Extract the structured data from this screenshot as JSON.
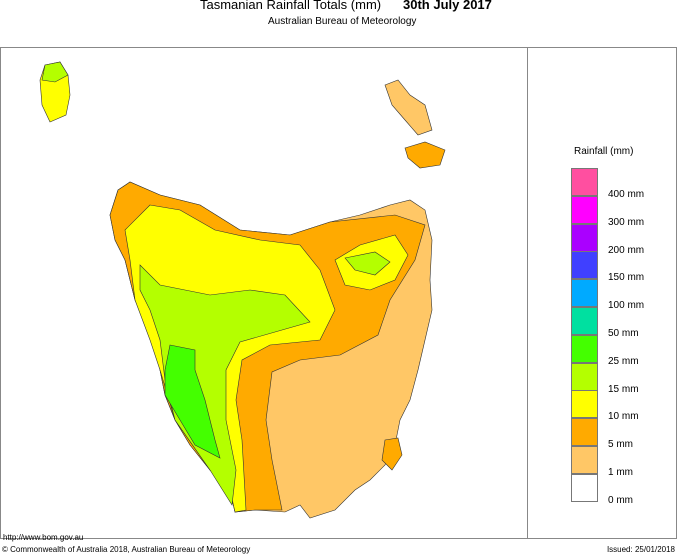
{
  "header": {
    "title": "Tasmanian Rainfall Totals (mm)",
    "date": "30th July 2017",
    "subtitle": "Australian Bureau of Meteorology"
  },
  "legend": {
    "title": "Rainfall (mm)",
    "colors": [
      "#FF4FA0",
      "#FF00FF",
      "#AA00FF",
      "#4040FF",
      "#00AAFF",
      "#00E0A0",
      "#44FF00",
      "#B4FF00",
      "#FFFF00",
      "#FFAA00",
      "#FFC766",
      "#FFFFFF"
    ],
    "labels": [
      "400 mm",
      "300 mm",
      "200 mm",
      "150 mm",
      "100 mm",
      "50 mm",
      "25 mm",
      "15 mm",
      "10 mm",
      "5 mm",
      "1 mm",
      "0 mm"
    ]
  },
  "footer": {
    "url": "http://www.bom.gov.au",
    "copyright": "© Commonwealth of Australia 2018, Australian Bureau of Meteorology",
    "issued": "Issued: 25/01/2018"
  }
}
